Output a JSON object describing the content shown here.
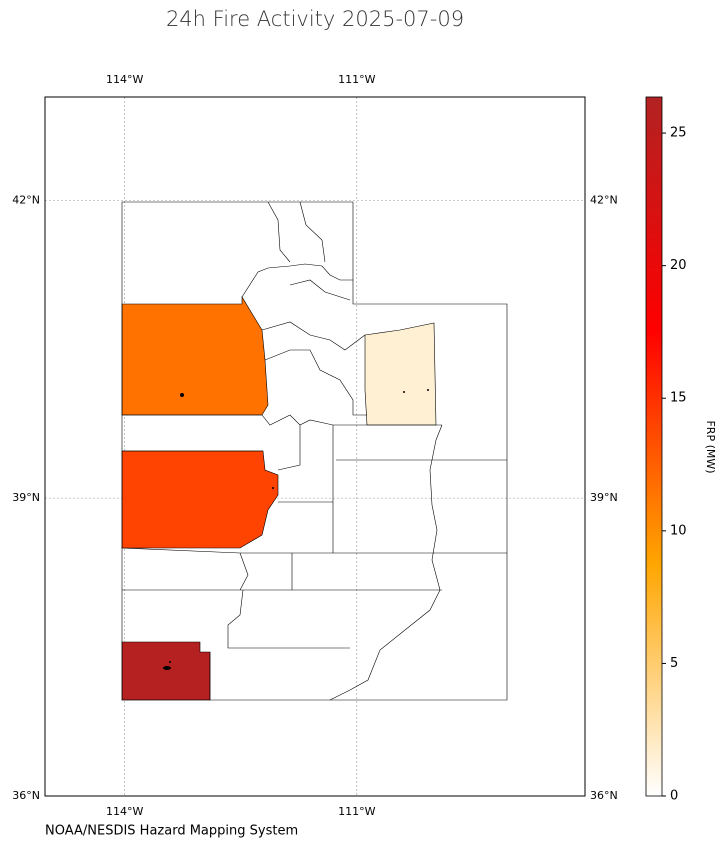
{
  "chart_data": {
    "type": "choropleth",
    "title": "24h Fire Activity 2025-07-09",
    "source": "NOAA/NESDIS Hazard Mapping System",
    "values": [
      11.5,
      14,
      26,
      1.5
    ],
    "xlim": [
      -115.03,
      -108.05
    ],
    "ylim": [
      36,
      43.04
    ],
    "xticks": [
      {
        "value": -114,
        "label": "114°W"
      },
      {
        "value": -111,
        "label": "111°W"
      }
    ],
    "yticks": [
      {
        "value": 36,
        "label": "36°N"
      },
      {
        "value": 39,
        "label": "39°N"
      },
      {
        "value": 42,
        "label": "42°N"
      }
    ],
    "grid": true,
    "colorbar": {
      "label": "FRP (MW)",
      "lim": [
        0,
        26.36
      ],
      "ticks": [
        0,
        5,
        10,
        15,
        20,
        25
      ],
      "colors": [
        "#ffffff",
        "#ffa500",
        "#ff0000",
        "#b22222"
      ]
    }
  }
}
